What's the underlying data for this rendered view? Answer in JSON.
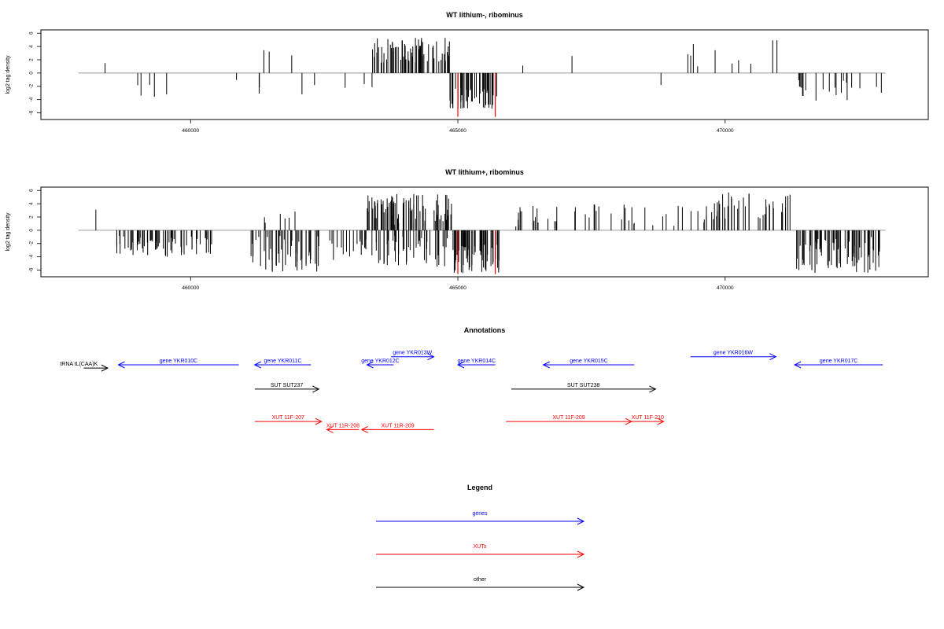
{
  "chart_data": [
    {
      "type": "bar",
      "title": "WT lithium-, ribominus",
      "ylabel": "log2 tag density",
      "xlim": [
        457200,
        473800
      ],
      "ylim": [
        -7,
        6.5
      ],
      "y_ticks": [
        6,
        4,
        2,
        0,
        -2,
        -4,
        -6
      ],
      "x_ticks": [
        460000,
        465000,
        470000
      ],
      "x_tick_labels": [
        "460000",
        "465000",
        "470000"
      ],
      "bar_color": "#000000",
      "highlight_color": "#ff0000",
      "highlight_positions": [
        465000,
        465700
      ],
      "highlight_values": [
        -6.6,
        -6.6
      ],
      "segments": [
        {
          "start": 458400,
          "end": 458400,
          "density": 1,
          "sign": 1,
          "hmin": 1.5,
          "hmax": 1.5
        },
        {
          "start": 458700,
          "end": 460500,
          "density": 0.3,
          "sign": -1,
          "hmin": 1.0,
          "hmax": 4.2
        },
        {
          "start": 460700,
          "end": 460900,
          "density": 0.3,
          "sign": -1,
          "hmin": 1.0,
          "hmax": 1.8
        },
        {
          "start": 461200,
          "end": 461600,
          "density": 0.5,
          "sign": 1,
          "hmin": 1.0,
          "hmax": 4.2
        },
        {
          "start": 461200,
          "end": 462400,
          "density": 0.35,
          "sign": -1,
          "hmin": 1.0,
          "hmax": 3.5
        },
        {
          "start": 461800,
          "end": 462000,
          "density": 0.6,
          "sign": 1,
          "hmin": 1.0,
          "hmax": 4.0
        },
        {
          "start": 462800,
          "end": 463300,
          "density": 0.3,
          "sign": -1,
          "hmin": 1.0,
          "hmax": 2.5
        },
        {
          "start": 463350,
          "end": 463450,
          "density": 0.5,
          "sign": -1,
          "hmin": 2.0,
          "hmax": 3.2
        },
        {
          "start": 463400,
          "end": 464850,
          "density": 5,
          "sign": 1,
          "hmin": 1.5,
          "hmax": 5.3
        },
        {
          "start": 464850,
          "end": 465800,
          "density": 5,
          "sign": -1,
          "hmin": 2.0,
          "hmax": 5.5
        },
        {
          "start": 466100,
          "end": 466700,
          "density": 0.2,
          "sign": 1,
          "hmin": 0.8,
          "hmax": 1.8
        },
        {
          "start": 467000,
          "end": 467500,
          "density": 0.25,
          "sign": 1,
          "hmin": 0.8,
          "hmax": 2.8
        },
        {
          "start": 468800,
          "end": 468800,
          "density": 1,
          "sign": -1,
          "hmin": 1.8,
          "hmax": 1.8
        },
        {
          "start": 469300,
          "end": 471000,
          "density": 0.6,
          "sign": 1,
          "hmin": 1.0,
          "hmax": 5.0
        },
        {
          "start": 471300,
          "end": 472950,
          "density": 1.2,
          "sign": -1,
          "hmin": 1.0,
          "hmax": 4.2
        }
      ]
    },
    {
      "type": "bar",
      "title": "WT lithium+, ribominus",
      "ylabel": "log2 tag density",
      "xlim": [
        457200,
        473800
      ],
      "ylim": [
        -7,
        6.5
      ],
      "y_ticks": [
        6,
        4,
        2,
        0,
        -2,
        -4,
        -6
      ],
      "x_ticks": [
        460000,
        465000,
        470000
      ],
      "x_tick_labels": [
        "460000",
        "465000",
        "470000"
      ],
      "bar_color": "#000000",
      "highlight_color": "#ff0000",
      "highlight_positions": [
        465000,
        465700
      ],
      "highlight_values": [
        -6.6,
        -6.6
      ],
      "segments": [
        {
          "start": 458200,
          "end": 458500,
          "density": 0.3,
          "sign": 1,
          "hmin": 0.8,
          "hmax": 3.6
        },
        {
          "start": 458600,
          "end": 460400,
          "density": 4,
          "sign": -1,
          "hmin": 0.8,
          "hmax": 4.0
        },
        {
          "start": 461100,
          "end": 462400,
          "density": 4,
          "sign": -1,
          "hmin": 0.8,
          "hmax": 6.3
        },
        {
          "start": 461300,
          "end": 462200,
          "density": 0.7,
          "sign": 1,
          "hmin": 0.8,
          "hmax": 3.0
        },
        {
          "start": 462600,
          "end": 463300,
          "density": 2.5,
          "sign": -1,
          "hmin": 0.8,
          "hmax": 4.5
        },
        {
          "start": 463300,
          "end": 464900,
          "density": 5,
          "sign": 1,
          "hmin": 0.8,
          "hmax": 5.5
        },
        {
          "start": 463300,
          "end": 464900,
          "density": 3,
          "sign": -1,
          "hmin": 0.8,
          "hmax": 5.5
        },
        {
          "start": 464900,
          "end": 465800,
          "density": 6,
          "sign": -1,
          "hmin": 2.0,
          "hmax": 6.6
        },
        {
          "start": 466000,
          "end": 469500,
          "density": 1.2,
          "sign": 1,
          "hmin": 0.5,
          "hmax": 4.0
        },
        {
          "start": 469500,
          "end": 471300,
          "density": 2.5,
          "sign": 1,
          "hmin": 0.8,
          "hmax": 5.8
        },
        {
          "start": 471300,
          "end": 472950,
          "density": 5,
          "sign": -1,
          "hmin": 1.0,
          "hmax": 6.5
        }
      ]
    },
    {
      "type": "annotation_track",
      "title": "Annotations",
      "xlim": [
        457200,
        473800
      ],
      "features": [
        {
          "label": "tRNA tL(CAA)K",
          "start": 458000,
          "end": 458450,
          "strand": "+",
          "row": 0.4,
          "color": "#000000",
          "label_at": "start"
        },
        {
          "label": "gene YKR010C",
          "start": 458650,
          "end": 460900,
          "strand": "-",
          "row": 0,
          "color": "#0000ff"
        },
        {
          "label": "gene YKR011C",
          "start": 461200,
          "end": 462250,
          "strand": "-",
          "row": 0,
          "color": "#0000ff"
        },
        {
          "label": "gene YKR012C",
          "start": 463300,
          "end": 463800,
          "strand": "-",
          "row": 0,
          "color": "#0000ff"
        },
        {
          "label": "gene YKR013W",
          "start": 463750,
          "end": 464550,
          "strand": "+",
          "row": -1,
          "color": "#0000ff"
        },
        {
          "label": "gene YKR014C",
          "start": 465000,
          "end": 465700,
          "strand": "-",
          "row": 0,
          "color": "#0000ff"
        },
        {
          "label": "gene YKR015C",
          "start": 466600,
          "end": 468300,
          "strand": "-",
          "row": 0,
          "color": "#0000ff"
        },
        {
          "label": "gene YKR016W",
          "start": 469350,
          "end": 470950,
          "strand": "+",
          "row": -1,
          "color": "#0000ff"
        },
        {
          "label": "gene YKR017C",
          "start": 471300,
          "end": 472950,
          "strand": "-",
          "row": 0,
          "color": "#0000ff"
        },
        {
          "label": "SUT SUT237",
          "start": 461200,
          "end": 462400,
          "strand": "+",
          "row": 3,
          "color": "#000000"
        },
        {
          "label": "SUT SUT238",
          "start": 466000,
          "end": 468700,
          "strand": "+",
          "row": 3,
          "color": "#000000"
        },
        {
          "label": "XUT 11F-207",
          "start": 461200,
          "end": 462450,
          "strand": "+",
          "row": 7,
          "color": "#ff0000"
        },
        {
          "label": "XUT 11R-208",
          "start": 462550,
          "end": 463150,
          "strand": "-",
          "row": 8,
          "color": "#ff0000"
        },
        {
          "label": "XUT 11R-209",
          "start": 463200,
          "end": 464550,
          "strand": "-",
          "row": 8,
          "color": "#ff0000"
        },
        {
          "label": "XUT 11F-209",
          "start": 465900,
          "end": 468250,
          "strand": "+",
          "row": 7,
          "color": "#ff0000"
        },
        {
          "label": "XUT 11F-210",
          "start": 468250,
          "end": 468850,
          "strand": "+",
          "row": 7,
          "color": "#ff0000"
        }
      ]
    }
  ],
  "legend": {
    "title": "Legend",
    "items": [
      {
        "label": "genes",
        "color": "#0000ff"
      },
      {
        "label": "XUTs",
        "color": "#ff0000"
      },
      {
        "label": "other",
        "color": "#000000"
      }
    ]
  }
}
